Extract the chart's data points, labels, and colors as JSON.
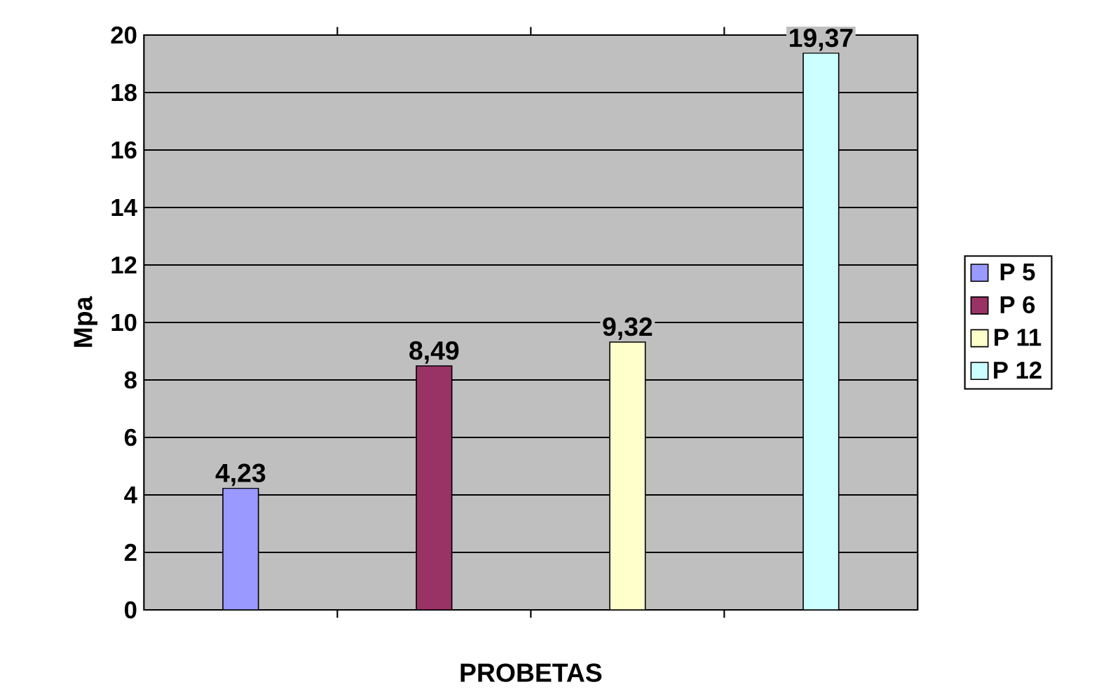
{
  "chart_data": {
    "type": "bar",
    "xlabel": "PROBETAS",
    "ylabel": "Mpa",
    "categories": [
      null,
      null,
      null,
      null
    ],
    "series": [
      {
        "name": "P 5",
        "color": "#9999ff",
        "values": [
          4.23,
          null,
          null,
          null
        ],
        "value_labels": [
          "4,23",
          null,
          null,
          null
        ]
      },
      {
        "name": "P 6",
        "color": "#993366",
        "values": [
          null,
          8.49,
          null,
          null
        ],
        "value_labels": [
          null,
          "8,49",
          null,
          null
        ]
      },
      {
        "name": "P 11",
        "color": "#ffffcc",
        "values": [
          null,
          null,
          9.32,
          null
        ],
        "value_labels": [
          null,
          null,
          "9,32",
          null
        ]
      },
      {
        "name": "P 12",
        "color": "#ccffff",
        "values": [
          null,
          null,
          null,
          19.37
        ],
        "value_labels": [
          null,
          null,
          null,
          "19,37"
        ]
      }
    ],
    "ylim": [
      0,
      20
    ],
    "yticks": [
      0,
      2,
      4,
      6,
      8,
      10,
      12,
      14,
      16,
      18,
      20
    ],
    "grid": "y",
    "legend": "right"
  }
}
